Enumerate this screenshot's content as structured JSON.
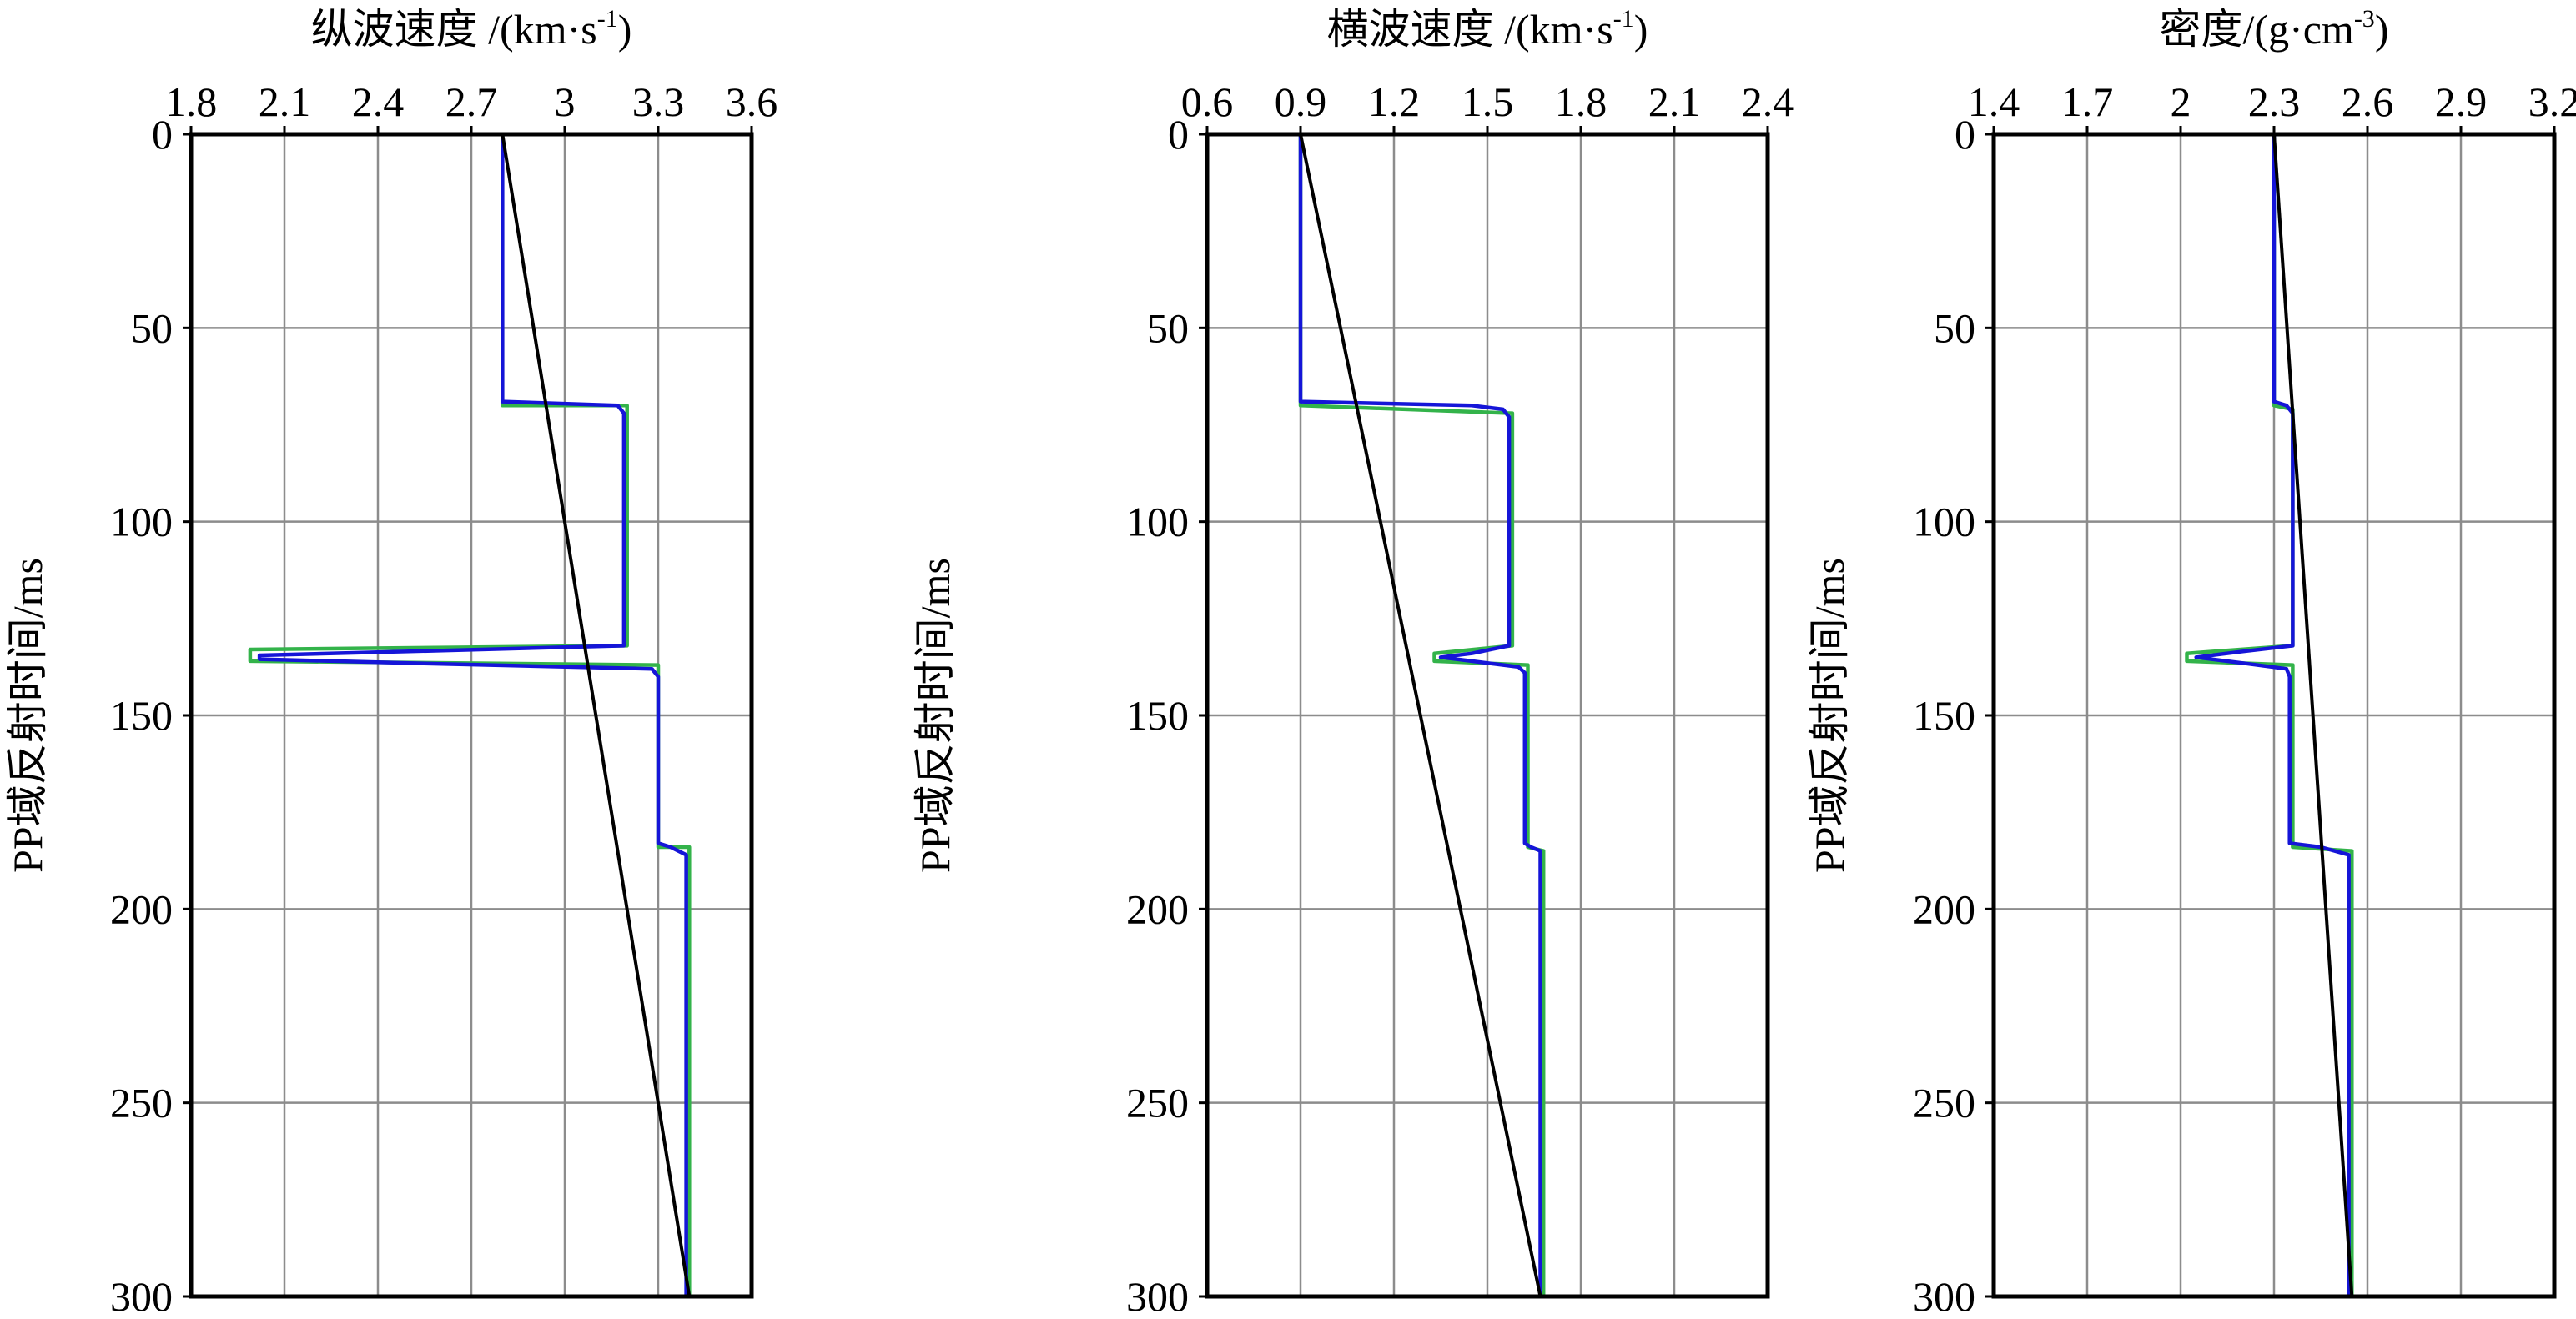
{
  "chart_data": [
    {
      "type": "line",
      "title": "纵波速度 /(km·s",
      "title_sup": "-1",
      "title_suffix": ")",
      "ylabel": "PP域反射时间/ms",
      "xlim": [
        1.8,
        3.6
      ],
      "ylim": [
        0,
        300
      ],
      "y_inverted": true,
      "xticks": [
        "1.8",
        "2.1",
        "2.4",
        "2.7",
        "3",
        "3.3",
        "3.6"
      ],
      "yticks": [
        "0",
        "50",
        "100",
        "150",
        "200",
        "250",
        "300"
      ],
      "grid": true,
      "colors": {
        "green": "#33b34a",
        "blue": "#1515d8",
        "black": "#000000"
      },
      "series": [
        {
          "color": "#33b34a",
          "points": [
            [
              2.8,
              0
            ],
            [
              2.8,
              70
            ],
            [
              3.2,
              70
            ],
            [
              3.2,
              132
            ],
            [
              1.99,
              133
            ],
            [
              1.99,
              136
            ],
            [
              3.3,
              137
            ],
            [
              3.3,
              184
            ],
            [
              3.4,
              184
            ],
            [
              3.4,
              300
            ]
          ]
        },
        {
          "color": "#1515d8",
          "points": [
            [
              2.8,
              0
            ],
            [
              2.8,
              69
            ],
            [
              3.17,
              70
            ],
            [
              3.19,
              72
            ],
            [
              3.19,
              132
            ],
            [
              2.5,
              133.5
            ],
            [
              2.02,
              134.5
            ],
            [
              2.02,
              135.5
            ],
            [
              2.5,
              136.5
            ],
            [
              3.28,
              138
            ],
            [
              3.3,
              140
            ],
            [
              3.3,
              183
            ],
            [
              3.34,
              184
            ],
            [
              3.39,
              186
            ],
            [
              3.39,
              300
            ]
          ]
        },
        {
          "color": "#000000",
          "points": [
            [
              2.8,
              0
            ],
            [
              3.4,
              300
            ]
          ]
        }
      ]
    },
    {
      "type": "line",
      "title": "横波速度 /(km·s",
      "title_sup": "-1",
      "title_suffix": ")",
      "ylabel": "PP域反射时间/ms",
      "xlim": [
        0.6,
        2.4
      ],
      "ylim": [
        0,
        300
      ],
      "y_inverted": true,
      "xticks": [
        "0.6",
        "0.9",
        "1.2",
        "1.5",
        "1.8",
        "2.1",
        "2.4"
      ],
      "yticks": [
        "0",
        "50",
        "100",
        "150",
        "200",
        "250",
        "300"
      ],
      "grid": true,
      "colors": {
        "green": "#33b34a",
        "blue": "#1515d8",
        "black": "#000000"
      },
      "series": [
        {
          "color": "#33b34a",
          "points": [
            [
              0.9,
              0
            ],
            [
              0.9,
              70
            ],
            [
              1.58,
              72
            ],
            [
              1.58,
              132
            ],
            [
              1.33,
              134
            ],
            [
              1.33,
              136
            ],
            [
              1.63,
              137
            ],
            [
              1.63,
              184
            ],
            [
              1.68,
              185
            ],
            [
              1.68,
              300
            ]
          ]
        },
        {
          "color": "#1515d8",
          "points": [
            [
              0.9,
              0
            ],
            [
              0.9,
              69
            ],
            [
              1.45,
              70
            ],
            [
              1.55,
              71
            ],
            [
              1.57,
              73
            ],
            [
              1.57,
              132
            ],
            [
              1.45,
              134
            ],
            [
              1.35,
              135
            ],
            [
              1.45,
              136
            ],
            [
              1.6,
              137.5
            ],
            [
              1.62,
              139
            ],
            [
              1.62,
              183
            ],
            [
              1.64,
              184
            ],
            [
              1.67,
              185
            ],
            [
              1.67,
              300
            ]
          ]
        },
        {
          "color": "#000000",
          "points": [
            [
              0.9,
              0
            ],
            [
              1.67,
              300
            ]
          ]
        }
      ]
    },
    {
      "type": "line",
      "title": "密度/(g·cm",
      "title_sup": "-3",
      "title_suffix": ")",
      "ylabel": "PP域反射时间/ms",
      "xlim": [
        1.4,
        3.2
      ],
      "ylim": [
        0,
        300
      ],
      "y_inverted": true,
      "xticks": [
        "1.4",
        "1.7",
        "2",
        "2.3",
        "2.6",
        "2.9",
        "3.2"
      ],
      "yticks": [
        "0",
        "50",
        "100",
        "150",
        "200",
        "250",
        "300"
      ],
      "grid": true,
      "colors": {
        "green": "#33b34a",
        "blue": "#1515d8",
        "black": "#000000"
      },
      "series": [
        {
          "color": "#33b34a",
          "points": [
            [
              2.3,
              0
            ],
            [
              2.3,
              70
            ],
            [
              2.36,
              71
            ],
            [
              2.36,
              132
            ],
            [
              2.02,
              134
            ],
            [
              2.02,
              136
            ],
            [
              2.36,
              137
            ],
            [
              2.36,
              184
            ],
            [
              2.55,
              185
            ],
            [
              2.55,
              300
            ]
          ]
        },
        {
          "color": "#1515d8",
          "points": [
            [
              2.3,
              0
            ],
            [
              2.3,
              69
            ],
            [
              2.34,
              70
            ],
            [
              2.36,
              72
            ],
            [
              2.36,
              132
            ],
            [
              2.2,
              133.5
            ],
            [
              2.05,
              135
            ],
            [
              2.2,
              136.5
            ],
            [
              2.34,
              138
            ],
            [
              2.35,
              140
            ],
            [
              2.35,
              183
            ],
            [
              2.45,
              184
            ],
            [
              2.54,
              186
            ],
            [
              2.54,
              300
            ]
          ]
        },
        {
          "color": "#000000",
          "points": [
            [
              2.3,
              0
            ],
            [
              2.55,
              300
            ]
          ]
        }
      ]
    }
  ]
}
